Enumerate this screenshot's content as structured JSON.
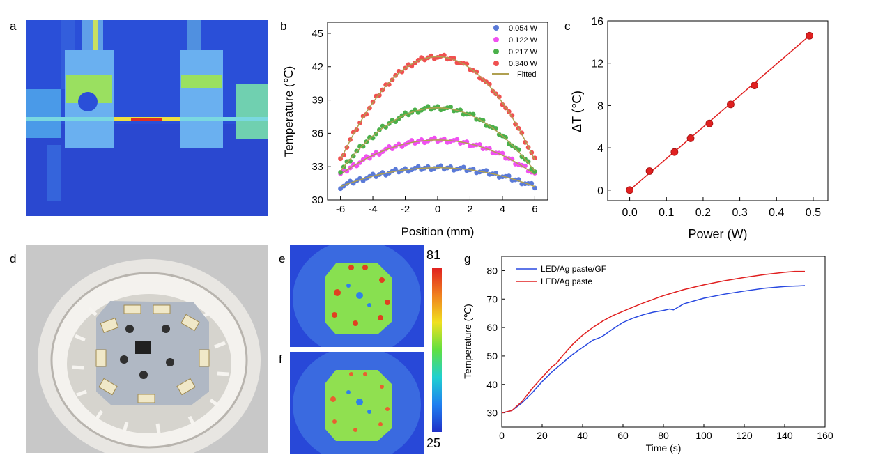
{
  "panels": {
    "a": "a",
    "b": "b",
    "c": "c",
    "d": "d",
    "e": "e",
    "f": "f",
    "g": "g"
  },
  "colorbar": {
    "max": "81",
    "min": "25"
  },
  "colors": {
    "thermal_bg": "#2a4fd8",
    "chart_red": "#e02020",
    "chart_blue": "#2848e0",
    "fit_line": "#b0a050",
    "s1": "#5a7ad8",
    "s2": "#f050f0",
    "s3": "#4ab04a",
    "s4": "#f05050"
  },
  "icons": {
    "a": "thermal-image-bridge",
    "d": "led-bulb-photo",
    "e": "thermal-image-led",
    "f": "thermal-image-led",
    "cbar": "colorbar-gradient"
  },
  "chart_data": [
    {
      "panel": "b",
      "type": "scatter",
      "xlabel": "Position (mm)",
      "ylabel": "Temperature (℃)",
      "xlim": [
        -6.8,
        6.8
      ],
      "ylim": [
        30,
        46
      ],
      "xticks": [
        "-6",
        "-4",
        "-2",
        "0",
        "2",
        "4",
        "6"
      ],
      "yticks": [
        "30",
        "33",
        "36",
        "39",
        "42",
        "45"
      ],
      "legend": "top-right",
      "series": [
        {
          "name": "0.054 W",
          "peak": 32.9,
          "edge": 31.2,
          "color": "#5a7ad8"
        },
        {
          "name": "0.122 W",
          "peak": 35.4,
          "edge": 32.3,
          "color": "#f050f0"
        },
        {
          "name": "0.217 W",
          "peak": 38.3,
          "edge": 32.6,
          "color": "#4ab04a"
        },
        {
          "name": "0.340 W",
          "peak": 42.9,
          "edge": 33.6,
          "color": "#f05050"
        }
      ],
      "fit_label": "Fitted"
    },
    {
      "panel": "c",
      "type": "line",
      "xlabel": "Power (W)",
      "ylabel": "ΔT (℃)",
      "xlim": [
        -0.06,
        0.54
      ],
      "ylim": [
        -1,
        16
      ],
      "xticks": [
        "0.0",
        "0.1",
        "0.2",
        "0.3",
        "0.4",
        "0.5"
      ],
      "yticks": [
        "0",
        "4",
        "8",
        "12",
        "16"
      ],
      "x": [
        0.0,
        0.054,
        0.122,
        0.166,
        0.217,
        0.275,
        0.34,
        0.49
      ],
      "y": [
        0.0,
        1.8,
        3.6,
        4.9,
        6.3,
        8.1,
        9.9,
        14.6
      ]
    },
    {
      "panel": "g",
      "type": "line",
      "xlabel": "Time (s)",
      "ylabel": "Temperature (℃)",
      "xlim": [
        0,
        160
      ],
      "ylim": [
        25,
        85
      ],
      "xticks": [
        "0",
        "20",
        "40",
        "60",
        "80",
        "100",
        "120",
        "140",
        "160"
      ],
      "yticks": [
        "30",
        "40",
        "50",
        "60",
        "70",
        "80"
      ],
      "legend": "top-left",
      "series": [
        {
          "name": "LED/Ag paste/GF",
          "color": "#2848e0",
          "x": [
            0,
            5,
            10,
            15,
            20,
            25,
            30,
            35,
            40,
            45,
            48,
            50,
            55,
            60,
            65,
            70,
            75,
            80,
            83,
            85,
            90,
            100,
            110,
            120,
            130,
            140,
            150
          ],
          "y": [
            30,
            30.8,
            33.5,
            37,
            41,
            44.5,
            47.5,
            50.5,
            53,
            55.5,
            56.3,
            57,
            59.5,
            61.8,
            63.3,
            64.5,
            65.4,
            66,
            66.5,
            66.2,
            68.3,
            70.3,
            71.7,
            72.8,
            73.8,
            74.4,
            74.7
          ]
        },
        {
          "name": "LED/Ag paste",
          "color": "#e02020",
          "x": [
            0,
            5,
            10,
            15,
            20,
            25,
            27,
            30,
            35,
            40,
            45,
            50,
            55,
            60,
            65,
            70,
            80,
            90,
            100,
            110,
            120,
            130,
            140,
            145,
            150
          ],
          "y": [
            30,
            30.8,
            34,
            38.5,
            42.5,
            46.3,
            47.3,
            50,
            54,
            57.3,
            60,
            62.3,
            64.2,
            65.7,
            67.2,
            68.6,
            71.2,
            73.3,
            75,
            76.4,
            77.6,
            78.6,
            79.4,
            79.7,
            79.7
          ]
        }
      ]
    }
  ]
}
